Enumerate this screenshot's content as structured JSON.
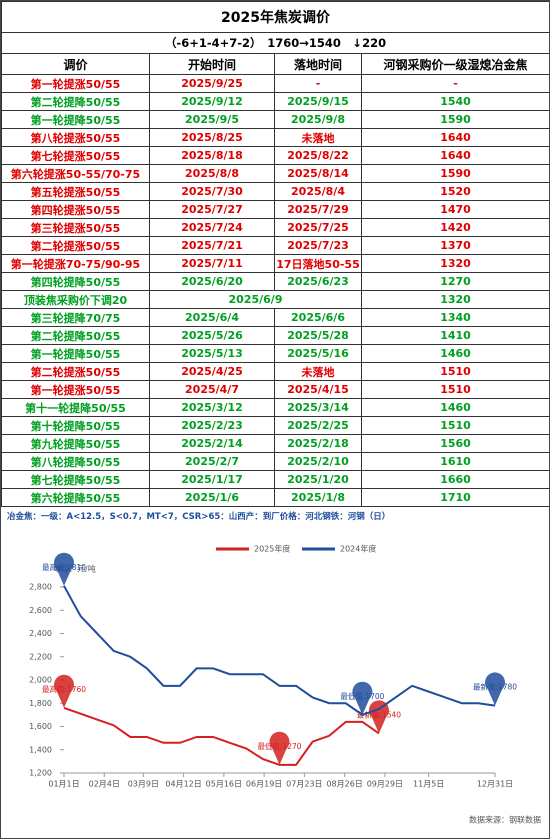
{
  "header": {
    "title": "2025年焦炭调价",
    "summary": "（-6+1-4+7-2）　1760→1540　↓220"
  },
  "table": {
    "columns": [
      "调价",
      "开始时间",
      "落地时间",
      "河钢采购价一级湿熄冶金焦"
    ],
    "rows": [
      {
        "color": "#e00000",
        "cells": [
          "第一轮提涨50/55",
          "2025/9/25",
          "-",
          "-"
        ]
      },
      {
        "color": "#00a020",
        "cells": [
          "第二轮提降50/55",
          "2025/9/12",
          "2025/9/15",
          "1540"
        ]
      },
      {
        "color": "#00a020",
        "cells": [
          "第一轮提降50/55",
          "2025/9/5",
          "2025/9/8",
          "1590"
        ]
      },
      {
        "color": "#e00000",
        "cells": [
          "第八轮提涨50/55",
          "2025/8/25",
          "未落地",
          "1640"
        ]
      },
      {
        "color": "#e00000",
        "cells": [
          "第七轮提涨50/55",
          "2025/8/18",
          "2025/8/22",
          "1640"
        ]
      },
      {
        "color": "#e00000",
        "cells": [
          "第六轮提涨50-55/70-75",
          "2025/8/8",
          "2025/8/14",
          "1590"
        ]
      },
      {
        "color": "#e00000",
        "cells": [
          "第五轮提涨50/55",
          "2025/7/30",
          "2025/8/4",
          "1520"
        ]
      },
      {
        "color": "#e00000",
        "cells": [
          "第四轮提涨50/55",
          "2025/7/27",
          "2025/7/29",
          "1470"
        ]
      },
      {
        "color": "#e00000",
        "cells": [
          "第三轮提涨50/55",
          "2025/7/24",
          "2025/7/25",
          "1420"
        ]
      },
      {
        "color": "#e00000",
        "cells": [
          "第二轮提涨50/55",
          "2025/7/21",
          "2025/7/23",
          "1370"
        ]
      },
      {
        "color": "#e00000",
        "cells": [
          "第一轮提涨70-75/90-95",
          "2025/7/11",
          "17日落地50-55",
          "1320"
        ]
      },
      {
        "color": "#00a020",
        "cells": [
          "第四轮提降50/55",
          "2025/6/20",
          "2025/6/23",
          "1270"
        ]
      },
      {
        "color": "#00a020",
        "cells": [
          "顶装焦采购价下调20",
          "2025/6/9",
          "1320"
        ]
      },
      {
        "color": "#00a020",
        "cells": [
          "第三轮提降70/75",
          "2025/6/4",
          "2025/6/6",
          "1340"
        ]
      },
      {
        "color": "#00a020",
        "cells": [
          "第二轮提降50/55",
          "2025/5/26",
          "2025/5/28",
          "1410"
        ]
      },
      {
        "color": "#00a020",
        "cells": [
          "第一轮提降50/55",
          "2025/5/13",
          "2025/5/16",
          "1460"
        ]
      },
      {
        "color": "#e00000",
        "cells": [
          "第二轮提涨50/55",
          "2025/4/25",
          "未落地",
          "1510"
        ]
      },
      {
        "color": "#e00000",
        "cells": [
          "第一轮提涨50/55",
          "2025/4/7",
          "2025/4/15",
          "1510"
        ]
      },
      {
        "color": "#00a020",
        "cells": [
          "第十一轮提降50/55",
          "2025/3/12",
          "2025/3/14",
          "1460"
        ]
      },
      {
        "color": "#00a020",
        "cells": [
          "第十轮提降50/55",
          "2025/2/23",
          "2025/2/25",
          "1510"
        ]
      },
      {
        "color": "#00a020",
        "cells": [
          "第九轮提降50/55",
          "2025/2/14",
          "2025/2/18",
          "1560"
        ]
      },
      {
        "color": "#00a020",
        "cells": [
          "第八轮提降50/55",
          "2025/2/7",
          "2025/2/10",
          "1610"
        ]
      },
      {
        "color": "#00a020",
        "cells": [
          "第七轮提降50/55",
          "2025/1/17",
          "2025/1/20",
          "1660"
        ]
      },
      {
        "color": "#00a020",
        "cells": [
          "第六轮提降50/55",
          "2025/1/6",
          "2025/1/8",
          "1710"
        ]
      }
    ]
  },
  "note": "冶金焦：一级：A<12.5，S<0.7，MT<7，CSR>65：山西产：到厂价格：河北钢铁：河钢（日）",
  "chart_data": {
    "type": "line",
    "unit": "单位：元/吨",
    "source": "数据来源：钢联数据",
    "x": [
      1,
      15,
      29,
      43,
      57,
      71,
      85,
      99,
      113,
      127,
      141,
      155,
      169,
      183,
      197,
      211,
      225,
      239,
      253,
      267,
      281,
      295,
      309,
      323,
      337,
      351,
      365
    ],
    "xlim": [
      1,
      365
    ],
    "xticks": [
      {
        "value": 1,
        "label": "01月1日"
      },
      {
        "value": 35,
        "label": "02月4日"
      },
      {
        "value": 68,
        "label": "03月9日"
      },
      {
        "value": 102,
        "label": "04月12日"
      },
      {
        "value": 136,
        "label": "05月16日"
      },
      {
        "value": 170,
        "label": "06月19日"
      },
      {
        "value": 204,
        "label": "07月23日"
      },
      {
        "value": 238,
        "label": "08月26日"
      },
      {
        "value": 272,
        "label": "09月29日"
      },
      {
        "value": 309,
        "label": "11月5日"
      },
      {
        "value": 365,
        "label": "12月31日"
      }
    ],
    "ylim": [
      1200,
      2800
    ],
    "yticks": [
      {
        "value": 1200,
        "label": "1,200"
      },
      {
        "value": 1400,
        "label": "1,400"
      },
      {
        "value": 1600,
        "label": "1,600"
      },
      {
        "value": 1800,
        "label": "1,800"
      },
      {
        "value": 2000,
        "label": "2,000"
      },
      {
        "value": 2200,
        "label": "2,200"
      },
      {
        "value": 2400,
        "label": "2,400"
      },
      {
        "value": 2600,
        "label": "2,600"
      },
      {
        "value": 2800,
        "label": "2,800"
      }
    ],
    "series": [
      {
        "name": "2025年度",
        "color": "#d42020",
        "values": [
          1760,
          1710,
          1660,
          1610,
          1510,
          1510,
          1460,
          1460,
          1510,
          1510,
          1460,
          1410,
          1320,
          1270,
          1270,
          1470,
          1520,
          1640,
          1640,
          1540,
          null,
          null,
          null,
          null,
          null,
          null,
          null
        ],
        "annotations": [
          {
            "x": 1,
            "y": 1760,
            "text": "最高值:1760"
          },
          {
            "x": 183,
            "y": 1270,
            "text": "最低值:1270"
          },
          {
            "x": 267,
            "y": 1540,
            "text": "最新值:1540"
          }
        ]
      },
      {
        "name": "2024年度",
        "color": "#1f4e9c",
        "values": [
          2810,
          2550,
          2400,
          2250,
          2200,
          2100,
          1950,
          1950,
          2100,
          2100,
          2050,
          2050,
          2050,
          1950,
          1950,
          1850,
          1800,
          1800,
          1700,
          1750,
          1850,
          1950,
          1900,
          1850,
          1800,
          1800,
          1780
        ],
        "annotations": [
          {
            "x": 1,
            "y": 2810,
            "text": "最高值:2810"
          },
          {
            "x": 253,
            "y": 1700,
            "text": "最低值:1700"
          },
          {
            "x": 365,
            "y": 1780,
            "text": "最新值:1780"
          }
        ]
      }
    ]
  }
}
